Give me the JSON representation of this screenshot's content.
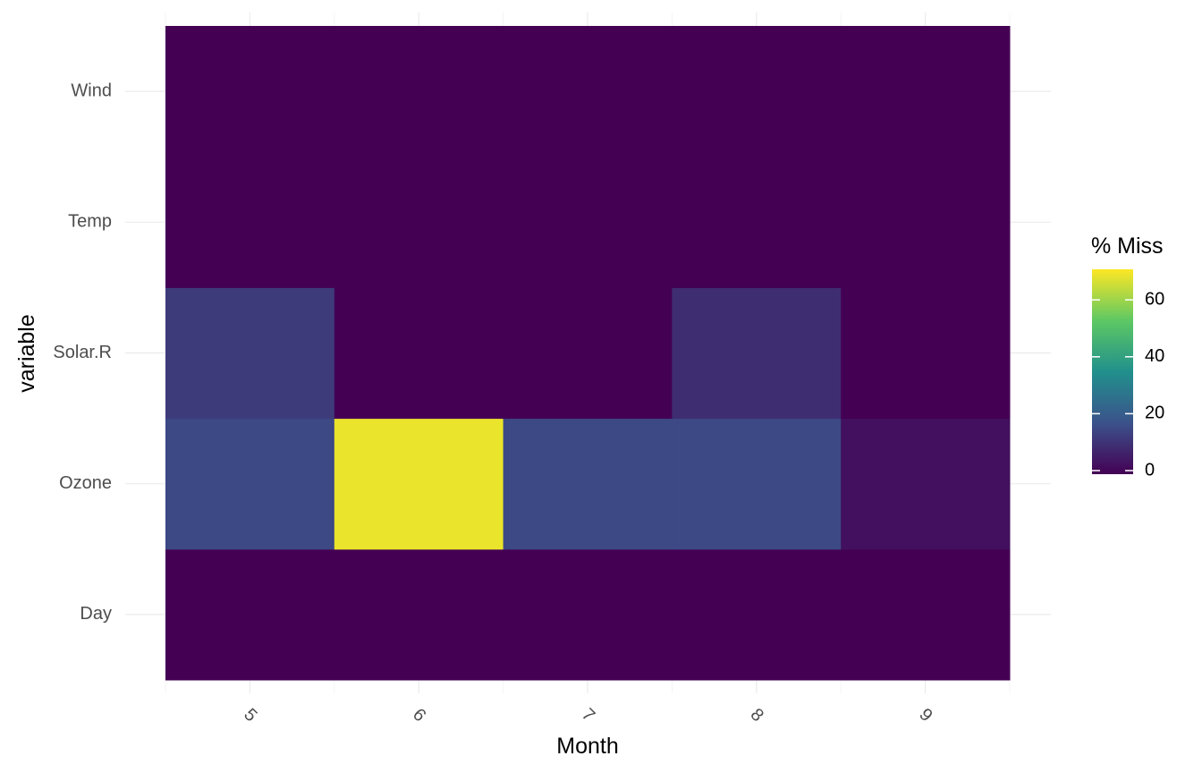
{
  "chart_data": {
    "type": "heatmap",
    "x": [
      5,
      6,
      7,
      8,
      9
    ],
    "xtick_labels": [
      "5",
      "6",
      "7",
      "8",
      "9"
    ],
    "y": [
      "Day",
      "Ozone",
      "Solar.R",
      "Temp",
      "Wind"
    ],
    "values": [
      [
        0,
        0,
        0,
        0,
        0
      ],
      [
        16.1,
        70,
        16.1,
        16.1,
        3.3
      ],
      [
        12.9,
        0,
        0,
        9.7,
        0
      ],
      [
        0,
        0,
        0,
        0,
        0
      ],
      [
        0,
        0,
        0,
        0,
        0
      ]
    ],
    "xlabel": "Month",
    "ylabel": "variable",
    "legend": {
      "title": "% Miss",
      "ticks": [
        0,
        20,
        40,
        60
      ],
      "range": [
        0,
        72
      ],
      "placement": "right",
      "colorscale": [
        "#440154",
        "#3B528B",
        "#21908C",
        "#5DC863",
        "#FDE725"
      ]
    },
    "grid": true
  }
}
